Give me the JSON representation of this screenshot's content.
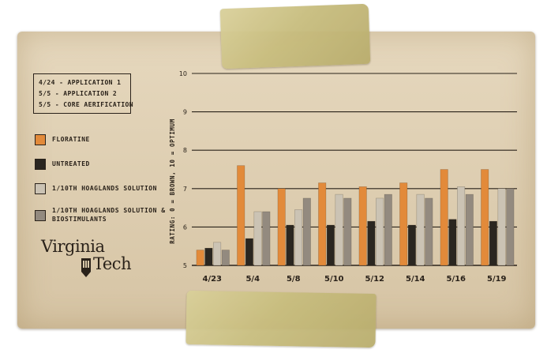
{
  "schedule": [
    "4/24 - APPLICATION 1",
    "5/5 - APPLICATION 2",
    "5/5 - CORE AERIFICATION"
  ],
  "logo": {
    "line1": "Virginia",
    "line2": "Tech",
    "shield_text": "1872"
  },
  "colors": {
    "floratine": "#e28a3a",
    "untreated": "#2a2620",
    "hoaglands": "#cbc3b4",
    "hoaglands_bio": "#938a7f",
    "ink": "#2a221a"
  },
  "chart_data": {
    "type": "bar",
    "title": "",
    "xlabel": "",
    "ylabel": "RATING: 0 = BROWN, 10 = OPTIMUM",
    "ylim": [
      5,
      10
    ],
    "yticks": [
      "5",
      "6",
      "7",
      "8",
      "9",
      "10"
    ],
    "grid": true,
    "legend_position": "left",
    "categories": [
      "4/23",
      "5/4",
      "5/8",
      "5/10",
      "5/12",
      "5/14",
      "5/16",
      "5/19"
    ],
    "series": [
      {
        "name": "FLORATINE",
        "color": "#e28a3a",
        "values": [
          5.4,
          7.6,
          7.0,
          7.15,
          7.05,
          7.15,
          7.5,
          7.5
        ]
      },
      {
        "name": "UNTREATED",
        "color": "#2a2620",
        "values": [
          5.45,
          5.7,
          6.05,
          6.05,
          6.15,
          6.05,
          6.2,
          6.15
        ]
      },
      {
        "name": "1/10TH HOAGLANDS SOLUTION",
        "color": "#cbc3b4",
        "values": [
          5.6,
          6.4,
          6.45,
          6.85,
          6.75,
          6.85,
          7.05,
          7.0
        ]
      },
      {
        "name": "1/10TH HOAGLANDS SOLUTION & BIOSTIMULANTS",
        "color": "#938a7f",
        "values": [
          5.4,
          6.4,
          6.75,
          6.75,
          6.85,
          6.75,
          6.85,
          7.0
        ]
      }
    ]
  }
}
